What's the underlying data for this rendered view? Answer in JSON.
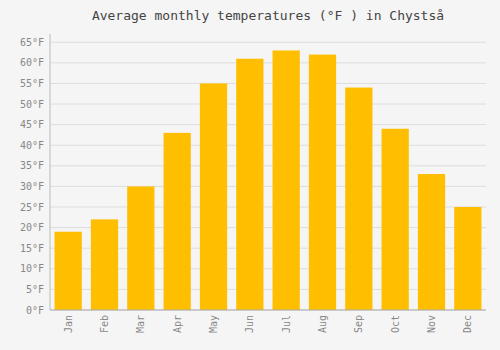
{
  "chart_data": {
    "type": "bar",
    "title": "Average monthly temperatures (°F ) in Chystså",
    "categories": [
      "Jan",
      "Feb",
      "Mar",
      "Apr",
      "May",
      "Jun",
      "Jul",
      "Aug",
      "Sep",
      "Oct",
      "Nov",
      "Dec"
    ],
    "values": [
      19,
      22,
      30,
      43,
      55,
      61,
      63,
      62,
      54,
      44,
      33,
      25
    ],
    "color": "#FFBE00",
    "ylim": [
      0,
      67
    ],
    "yticks": [
      {
        "value": 0,
        "label": "0°F"
      },
      {
        "value": 5,
        "label": "5°F"
      },
      {
        "value": 10,
        "label": "10°F"
      },
      {
        "value": 15,
        "label": "15°F"
      },
      {
        "value": 20,
        "label": "20°F"
      },
      {
        "value": 25,
        "label": "25°F"
      },
      {
        "value": 30,
        "label": "30°F"
      },
      {
        "value": 35,
        "label": "35°F"
      },
      {
        "value": 40,
        "label": "40°F"
      },
      {
        "value": 45,
        "label": "45°F"
      },
      {
        "value": 50,
        "label": "50°F"
      },
      {
        "value": 55,
        "label": "55°F"
      },
      {
        "value": 60,
        "label": "60°F"
      },
      {
        "value": 65,
        "label": "65°F"
      }
    ],
    "grid": true
  }
}
